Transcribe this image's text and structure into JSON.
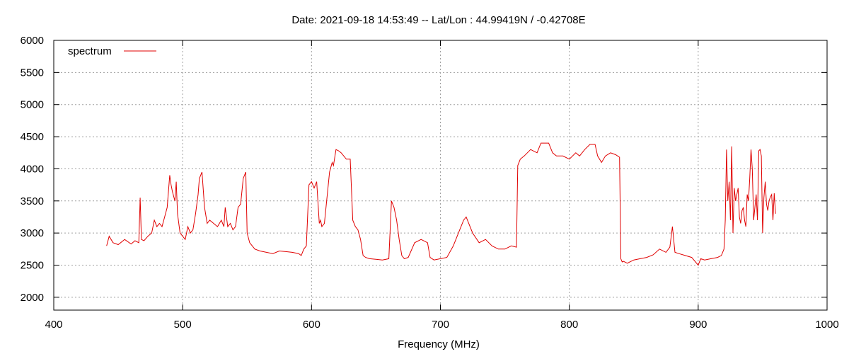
{
  "chart_data": {
    "type": "line",
    "title": "Date: 2021-09-18 14:53:49  --  Lat/Lon : 44.99419N / -0.42708E",
    "xlabel": "Frequency (MHz)",
    "ylabel": "",
    "xlim": [
      400,
      1000
    ],
    "ylim": [
      1800,
      6000
    ],
    "xticks": [
      400,
      500,
      600,
      700,
      800,
      900,
      1000
    ],
    "yticks": [
      2000,
      2500,
      3000,
      3500,
      4000,
      4500,
      5000,
      5500,
      6000
    ],
    "grid": true,
    "legend_position": "top-left",
    "series": [
      {
        "name": "spectrum",
        "color": "#e00000",
        "x": [
          441,
          443,
          446,
          450,
          455,
          460,
          463,
          466,
          467,
          468,
          470,
          473,
          476,
          478,
          480,
          482,
          484,
          486,
          488,
          490,
          491,
          492,
          494,
          495,
          496,
          498,
          500,
          502,
          504,
          506,
          508,
          510,
          512,
          513,
          515,
          517,
          519,
          521,
          524,
          527,
          530,
          532,
          533,
          535,
          537,
          539,
          541,
          543,
          545,
          547,
          549,
          550,
          552,
          556,
          560,
          565,
          570,
          575,
          580,
          585,
          590,
          592,
          594,
          596,
          598,
          600,
          602,
          604,
          606,
          607,
          608,
          610,
          614,
          616,
          617,
          619,
          621,
          623,
          625,
          627,
          630,
          632,
          634,
          636,
          638,
          640,
          642,
          645,
          650,
          655,
          660,
          662,
          664,
          666,
          668,
          670,
          672,
          675,
          680,
          685,
          690,
          692,
          695,
          700,
          705,
          710,
          715,
          718,
          720,
          725,
          730,
          735,
          740,
          745,
          750,
          755,
          759,
          760,
          762,
          765,
          770,
          775,
          778,
          781,
          784,
          787,
          790,
          795,
          800,
          805,
          808,
          812,
          816,
          820,
          822,
          825,
          828,
          832,
          836,
          839,
          840,
          841,
          842,
          845,
          850,
          855,
          860,
          865,
          870,
          875,
          878,
          880,
          882,
          885,
          890,
          895,
          900,
          902,
          905,
          910,
          915,
          918,
          920,
          921,
          922,
          923,
          924,
          925,
          926,
          927,
          928,
          929,
          930,
          931,
          932,
          933,
          934,
          935,
          936,
          937,
          938,
          939,
          940,
          941,
          942,
          943,
          944,
          945,
          946,
          947,
          948,
          949,
          950,
          951,
          952,
          953,
          954,
          955,
          956,
          957,
          958,
          959,
          960
        ],
        "y": [
          2800,
          2950,
          2850,
          2820,
          2900,
          2830,
          2880,
          2850,
          3550,
          2900,
          2880,
          2950,
          3000,
          3200,
          3100,
          3150,
          3100,
          3250,
          3400,
          3900,
          3750,
          3650,
          3500,
          3800,
          3300,
          3000,
          2950,
          2900,
          3100,
          3000,
          3050,
          3300,
          3600,
          3850,
          3950,
          3400,
          3150,
          3200,
          3150,
          3100,
          3200,
          3100,
          3400,
          3100,
          3150,
          3050,
          3100,
          3400,
          3450,
          3850,
          3950,
          3000,
          2850,
          2750,
          2720,
          2700,
          2680,
          2720,
          2710,
          2700,
          2680,
          2650,
          2750,
          2800,
          3750,
          3800,
          3700,
          3800,
          3150,
          3200,
          3100,
          3150,
          3950,
          4100,
          4050,
          4300,
          4280,
          4250,
          4200,
          4150,
          4150,
          3200,
          3100,
          3050,
          2900,
          2650,
          2620,
          2600,
          2590,
          2580,
          2600,
          3500,
          3400,
          3200,
          2900,
          2650,
          2600,
          2620,
          2850,
          2900,
          2850,
          2620,
          2580,
          2600,
          2620,
          2800,
          3050,
          3200,
          3250,
          3000,
          2850,
          2900,
          2800,
          2750,
          2750,
          2800,
          2780,
          4050,
          4150,
          4200,
          4300,
          4250,
          4400,
          4400,
          4400,
          4250,
          4200,
          4200,
          4150,
          4250,
          4200,
          4300,
          4380,
          4380,
          4200,
          4100,
          4200,
          4250,
          4220,
          4180,
          2600,
          2550,
          2560,
          2530,
          2580,
          2600,
          2620,
          2660,
          2750,
          2700,
          2780,
          3100,
          2700,
          2680,
          2650,
          2620,
          2500,
          2600,
          2580,
          2600,
          2620,
          2650,
          2750,
          3200,
          4300,
          3500,
          3800,
          3200,
          4350,
          3000,
          3700,
          3500,
          3600,
          3700,
          3250,
          3150,
          3350,
          3400,
          3200,
          3100,
          3600,
          3500,
          3850,
          4300,
          4000,
          3200,
          3400,
          3600,
          3200,
          4280,
          4300,
          4200,
          3000,
          3550,
          3800,
          3450,
          3350,
          3500,
          3560,
          3600,
          3200,
          3620,
          3300
        ]
      }
    ]
  }
}
